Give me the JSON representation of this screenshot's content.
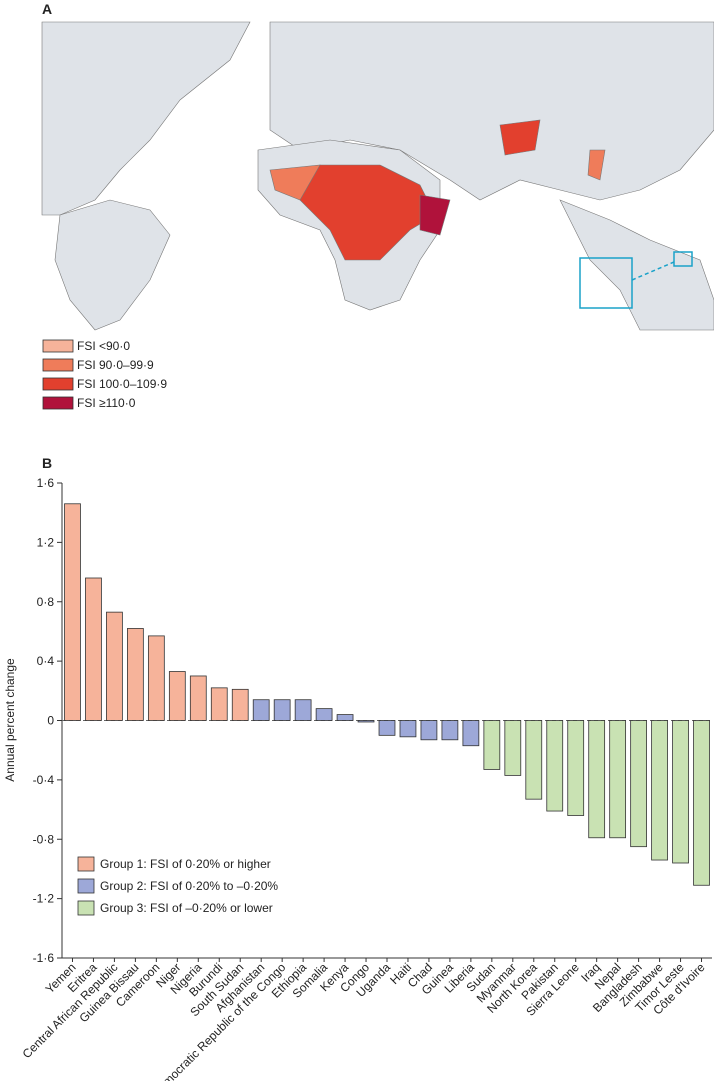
{
  "panel_a": {
    "label": "A",
    "legend": [
      {
        "label": "FSI <90·0",
        "color": "#f6b39a"
      },
      {
        "label": "FSI 90·0–99·9",
        "color": "#ef7c5a"
      },
      {
        "label": "FSI 100·0–109·9",
        "color": "#e2402e"
      },
      {
        "label": "FSI ≥110·0",
        "color": "#b0123b"
      }
    ]
  },
  "chart_data": {
    "type": "bar",
    "label": "B",
    "y_label": "Annual percent change",
    "categories": [
      "Yemen",
      "Eritrea",
      "Central African Republic",
      "Guinea Bissau",
      "Cameroon",
      "Niger",
      "Nigeria",
      "Burundi",
      "South Sudan",
      "Afghanistan",
      "Democratic Republic of the Congo",
      "Ethiopia",
      "Somalia",
      "Kenya",
      "Congo",
      "Uganda",
      "Haiti",
      "Chad",
      "Guinea",
      "Liberia",
      "Sudan",
      "Myanmar",
      "North Korea",
      "Pakistan",
      "Sierra Leone",
      "Iraq",
      "Nepal",
      "Bangladesh",
      "Zimbabwe",
      "Timor Leste",
      "Côte d'Ivoire"
    ],
    "series": [
      {
        "name": "Group 1: FSI of 0·20% or higher",
        "color": "#f6b39a",
        "values": [
          1.46,
          0.96,
          0.73,
          0.62,
          0.57,
          0.33,
          0.3,
          0.22,
          0.21,
          null,
          null,
          null,
          null,
          null,
          null,
          null,
          null,
          null,
          null,
          null,
          null,
          null,
          null,
          null,
          null,
          null,
          null,
          null,
          null,
          null,
          null
        ]
      },
      {
        "name": "Group 2: FSI of 0·20% to –0·20%",
        "color": "#9da8d8",
        "values": [
          null,
          null,
          null,
          null,
          null,
          null,
          null,
          null,
          null,
          0.14,
          0.14,
          0.14,
          0.08,
          0.04,
          -0.01,
          -0.1,
          -0.11,
          -0.13,
          -0.13,
          -0.17,
          null,
          null,
          null,
          null,
          null,
          null,
          null,
          null,
          null,
          null,
          null
        ]
      },
      {
        "name": "Group 3: FSI of –0·20% or lower",
        "color": "#c9e2b3",
        "values": [
          null,
          null,
          null,
          null,
          null,
          null,
          null,
          null,
          null,
          null,
          null,
          null,
          null,
          null,
          null,
          null,
          null,
          null,
          null,
          null,
          -0.33,
          -0.37,
          -0.53,
          -0.61,
          -0.64,
          -0.79,
          -0.79,
          -0.85,
          -0.94,
          -0.96,
          -1.11
        ]
      }
    ],
    "ylim": [
      -1.6,
      1.6
    ],
    "yticks": [
      {
        "value": -1.6,
        "label": "-1·6"
      },
      {
        "value": -1.2,
        "label": "-1·2"
      },
      {
        "value": -0.8,
        "label": "-0·8"
      },
      {
        "value": -0.4,
        "label": "-0·4"
      },
      0,
      {
        "value": 0.4,
        "label": "0·4"
      },
      {
        "value": 0.8,
        "label": "0·8"
      },
      {
        "value": 1.2,
        "label": "1·2"
      },
      {
        "value": 1.6,
        "label": "1·6"
      }
    ]
  }
}
